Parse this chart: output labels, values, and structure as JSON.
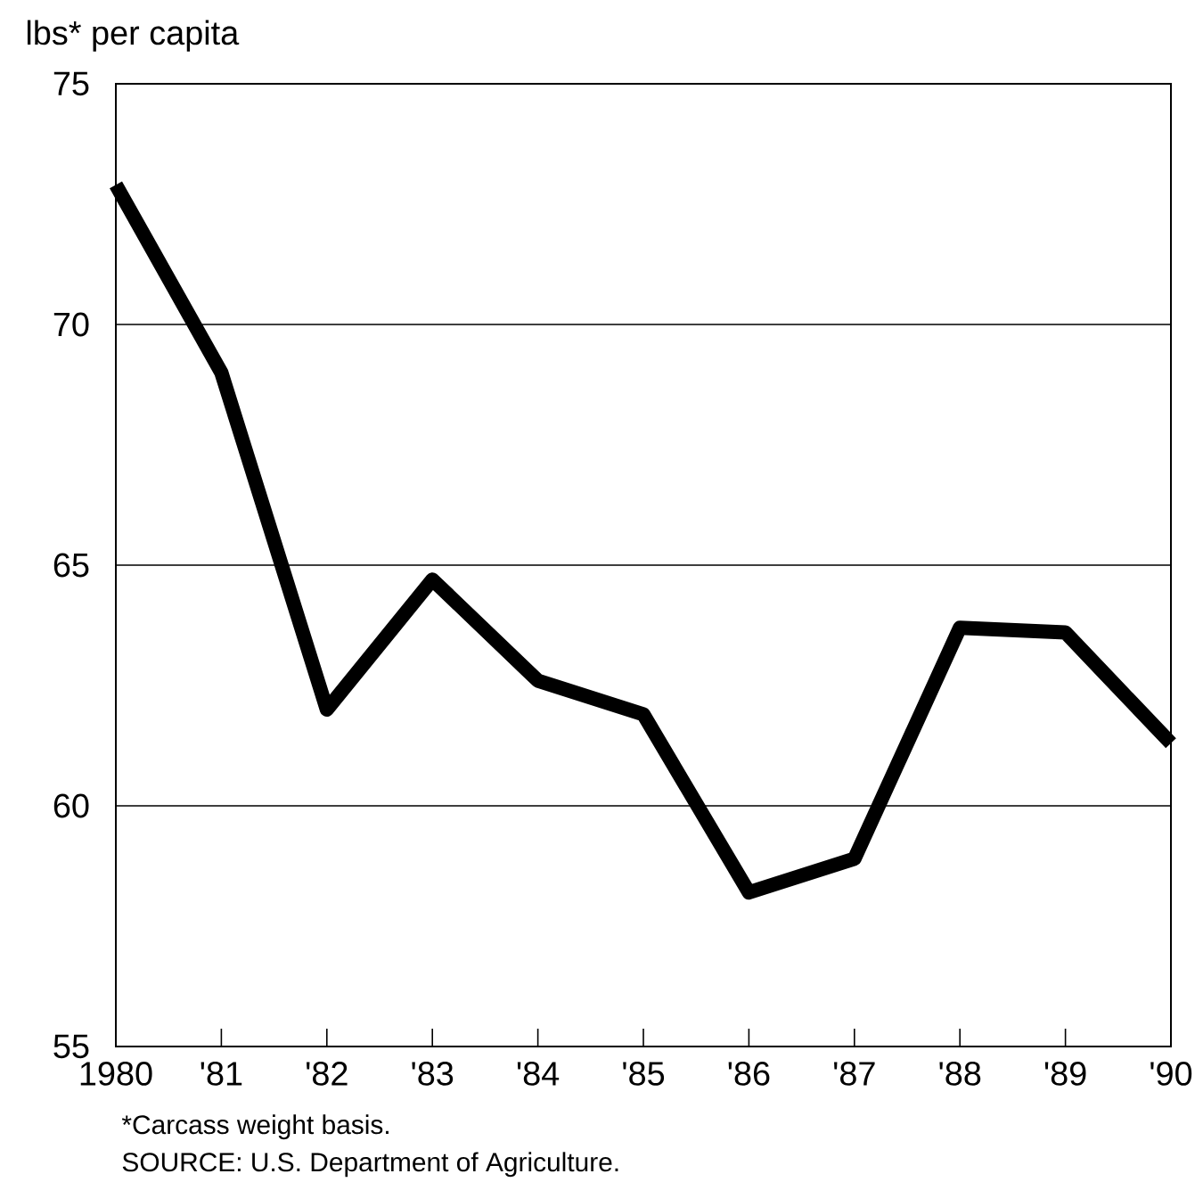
{
  "chart_data": {
    "type": "line",
    "ylabel": "lbs* per capita",
    "categories": [
      "1980",
      "'81",
      "'82",
      "'83",
      "'84",
      "'85",
      "'86",
      "'87",
      "'88",
      "'89",
      "'90"
    ],
    "values": [
      72.9,
      69.0,
      62.0,
      64.7,
      62.6,
      61.9,
      58.2,
      58.9,
      63.7,
      63.6,
      61.3
    ],
    "color": "#000000",
    "ylim": [
      55,
      75
    ],
    "yticks": [
      55,
      60,
      65,
      70,
      75
    ],
    "grid": "y",
    "annotations": [
      "*Carcass weight basis.",
      "SOURCE: U.S. Department of Agriculture."
    ]
  }
}
